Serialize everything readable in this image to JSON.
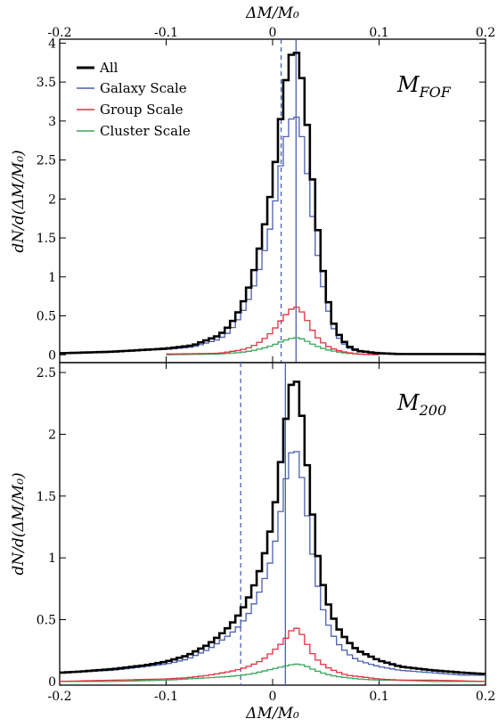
{
  "chart_data": [
    {
      "type": "line",
      "step": true,
      "panel_label": "M_{FOF}",
      "panel_label_main": "M",
      "panel_label_sub": "FOF",
      "xlabel_top": "ΔM/M₀",
      "xlabel": "",
      "ylabel": "dN/d(ΔM/M₀)",
      "xlim": [
        -0.2,
        0.2
      ],
      "ylim": [
        -0.1,
        4.05
      ],
      "x_ticks": [
        -0.2,
        -0.1,
        0,
        0.1,
        0.2
      ],
      "x_tick_labels": [
        "-0.2",
        "-0.1",
        "0",
        "0.1",
        "0.2"
      ],
      "y_ticks": [
        0,
        0.5,
        1,
        1.5,
        2,
        2.5,
        3,
        3.5,
        4
      ],
      "y_tick_labels": [
        "0",
        "0.5",
        "1",
        "1.5",
        "2",
        "2.5",
        "3",
        "3.5",
        "4"
      ],
      "legend_placement": "top-left",
      "legend": [
        "All",
        "Galaxy Scale",
        "Group Scale",
        "Cluster Scale"
      ],
      "vlines": [
        {
          "x": 0.022,
          "style": "solid",
          "color": "#4a5fb0"
        },
        {
          "x": 0.008,
          "style": "dashed",
          "color": "#4a5fb0"
        }
      ],
      "series": [
        {
          "name": "All",
          "color": "#000000",
          "width": 2.6,
          "x": [
            -0.2,
            -0.15,
            -0.1,
            -0.075,
            -0.05,
            -0.04,
            -0.03,
            -0.02,
            -0.01,
            0,
            0.005,
            0.01,
            0.015,
            0.02,
            0.025,
            0.03,
            0.035,
            0.04,
            0.045,
            0.05,
            0.055,
            0.06,
            0.07,
            0.08,
            0.1,
            0.12,
            0.15,
            0.2
          ],
          "y": [
            0.02,
            0.04,
            0.08,
            0.12,
            0.25,
            0.38,
            0.6,
            0.95,
            1.5,
            2.2,
            2.75,
            3.3,
            3.75,
            3.95,
            3.8,
            3.3,
            2.6,
            1.9,
            1.3,
            0.85,
            0.5,
            0.3,
            0.12,
            0.05,
            0.02,
            0.01,
            0.01,
            0.01
          ]
        },
        {
          "name": "Galaxy Scale",
          "color": "#4a5fb0",
          "width": 1.3,
          "x": [
            -0.2,
            -0.15,
            -0.1,
            -0.075,
            -0.05,
            -0.04,
            -0.03,
            -0.02,
            -0.01,
            0,
            0.005,
            0.01,
            0.015,
            0.02,
            0.025,
            0.03,
            0.035,
            0.04,
            0.045,
            0.05,
            0.055,
            0.06,
            0.07,
            0.08,
            0.1,
            0.12,
            0.15,
            0.2
          ],
          "y": [
            0.02,
            0.04,
            0.07,
            0.1,
            0.2,
            0.3,
            0.5,
            0.78,
            1.2,
            1.75,
            2.2,
            2.65,
            2.95,
            3.1,
            3.0,
            2.6,
            2.05,
            1.5,
            1.05,
            0.7,
            0.42,
            0.25,
            0.1,
            0.04,
            0.02,
            0.01,
            0.01,
            0.01
          ]
        },
        {
          "name": "Group Scale",
          "color": "#e0303f",
          "width": 1.3,
          "x": [
            -0.1,
            -0.05,
            -0.03,
            -0.02,
            -0.01,
            0,
            0.01,
            0.02,
            0.025,
            0.03,
            0.035,
            0.04,
            0.05,
            0.06,
            0.07,
            0.08,
            0.1
          ],
          "y": [
            0.01,
            0.02,
            0.06,
            0.1,
            0.18,
            0.3,
            0.48,
            0.62,
            0.6,
            0.5,
            0.38,
            0.25,
            0.12,
            0.06,
            0.03,
            0.01,
            0.0
          ]
        },
        {
          "name": "Cluster Scale",
          "color": "#3aa55a",
          "width": 1.3,
          "x": [
            -0.1,
            -0.05,
            -0.03,
            -0.02,
            -0.01,
            0,
            0.01,
            0.02,
            0.025,
            0.03,
            0.04,
            0.05,
            0.06,
            0.07,
            0.08,
            0.1
          ],
          "y": [
            0.0,
            0.01,
            0.03,
            0.05,
            0.08,
            0.12,
            0.18,
            0.22,
            0.22,
            0.19,
            0.12,
            0.07,
            0.04,
            0.02,
            0.01,
            0.0
          ]
        }
      ]
    },
    {
      "type": "line",
      "step": true,
      "panel_label": "M_{200}",
      "panel_label_main": "M",
      "panel_label_sub": "200",
      "xlabel": "ΔM/M₀",
      "ylabel": "dN/d(ΔM/M₀)",
      "xlim": [
        -0.2,
        0.2
      ],
      "ylim": [
        -0.03,
        2.58
      ],
      "x_ticks": [
        -0.2,
        -0.1,
        0,
        0.1,
        0.2
      ],
      "x_tick_labels": [
        "-0.2",
        "-0.1",
        "0",
        "0.1",
        "0.2"
      ],
      "y_ticks": [
        0,
        0.5,
        1,
        1.5,
        2,
        2.5
      ],
      "y_tick_labels": [
        "0",
        "0.5",
        "1",
        "1.5",
        "2",
        "2.5"
      ],
      "vlines": [
        {
          "x": 0.012,
          "style": "solid",
          "color": "#4a5fb0"
        },
        {
          "x": -0.03,
          "style": "dashed",
          "color": "#4a5fb0"
        }
      ],
      "series": [
        {
          "name": "All",
          "color": "#000000",
          "width": 2.6,
          "x": [
            -0.2,
            -0.18,
            -0.15,
            -0.12,
            -0.1,
            -0.08,
            -0.06,
            -0.05,
            -0.04,
            -0.03,
            -0.02,
            -0.01,
            0,
            0.005,
            0.01,
            0.015,
            0.02,
            0.025,
            0.03,
            0.035,
            0.04,
            0.045,
            0.05,
            0.06,
            0.07,
            0.08,
            0.1,
            0.12,
            0.15,
            0.18,
            0.2
          ],
          "y": [
            0.07,
            0.08,
            0.1,
            0.13,
            0.16,
            0.21,
            0.3,
            0.37,
            0.45,
            0.56,
            0.72,
            0.95,
            1.3,
            1.6,
            1.95,
            2.3,
            2.5,
            2.35,
            1.95,
            1.55,
            1.15,
            0.88,
            0.68,
            0.45,
            0.33,
            0.25,
            0.17,
            0.12,
            0.09,
            0.07,
            0.06
          ]
        },
        {
          "name": "Galaxy Scale",
          "color": "#4a5fb0",
          "width": 1.3,
          "x": [
            -0.2,
            -0.18,
            -0.15,
            -0.12,
            -0.1,
            -0.08,
            -0.06,
            -0.05,
            -0.04,
            -0.03,
            -0.02,
            -0.01,
            0,
            0.005,
            0.01,
            0.015,
            0.02,
            0.025,
            0.03,
            0.035,
            0.04,
            0.045,
            0.05,
            0.06,
            0.07,
            0.08,
            0.1,
            0.12,
            0.15,
            0.18,
            0.2
          ],
          "y": [
            0.07,
            0.08,
            0.09,
            0.12,
            0.14,
            0.18,
            0.26,
            0.32,
            0.38,
            0.46,
            0.58,
            0.77,
            1.02,
            1.25,
            1.5,
            1.78,
            1.92,
            1.8,
            1.5,
            1.18,
            0.88,
            0.66,
            0.5,
            0.32,
            0.23,
            0.17,
            0.12,
            0.09,
            0.07,
            0.05,
            0.05
          ]
        },
        {
          "name": "Group Scale",
          "color": "#e0303f",
          "width": 1.3,
          "x": [
            -0.2,
            -0.15,
            -0.1,
            -0.08,
            -0.06,
            -0.04,
            -0.03,
            -0.02,
            -0.01,
            0,
            0.01,
            0.015,
            0.02,
            0.025,
            0.03,
            0.035,
            0.04,
            0.05,
            0.06,
            0.07,
            0.08,
            0.1,
            0.12,
            0.15,
            0.2
          ],
          "y": [
            0.0,
            0.01,
            0.02,
            0.03,
            0.05,
            0.08,
            0.1,
            0.13,
            0.17,
            0.24,
            0.32,
            0.38,
            0.44,
            0.42,
            0.34,
            0.26,
            0.19,
            0.12,
            0.08,
            0.05,
            0.04,
            0.02,
            0.01,
            0.01,
            0.0
          ]
        },
        {
          "name": "Cluster Scale",
          "color": "#3aa55a",
          "width": 1.3,
          "x": [
            -0.2,
            -0.15,
            -0.1,
            -0.08,
            -0.06,
            -0.04,
            -0.02,
            -0.01,
            0,
            0.01,
            0.02,
            0.025,
            0.03,
            0.035,
            0.04,
            0.05,
            0.06,
            0.07,
            0.08,
            0.1,
            0.12,
            0.15,
            0.2
          ],
          "y": [
            0.0,
            0.0,
            0.01,
            0.02,
            0.03,
            0.04,
            0.06,
            0.08,
            0.1,
            0.12,
            0.14,
            0.14,
            0.13,
            0.11,
            0.09,
            0.06,
            0.04,
            0.03,
            0.02,
            0.01,
            0.01,
            0.0,
            0.0
          ]
        }
      ]
    }
  ]
}
